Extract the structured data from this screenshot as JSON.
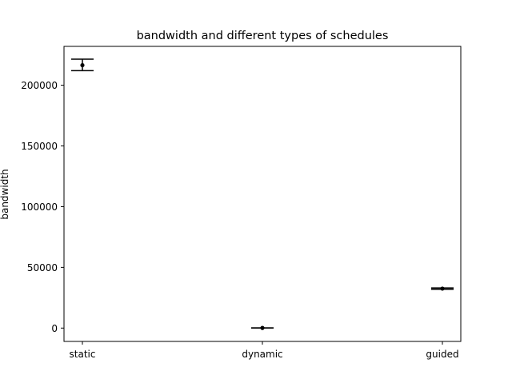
{
  "chart_data": {
    "type": "scatter",
    "title": "bandwidth and different types of schedules",
    "xlabel": "",
    "ylabel": "bandwidth",
    "categories": [
      "static",
      "dynamic",
      "guided"
    ],
    "series": [
      {
        "points": [
          {
            "x": "static",
            "y": 216500,
            "yerr_low": 212000,
            "yerr_high": 221500
          },
          {
            "x": "dynamic",
            "y": 100,
            "yerr_low": 100,
            "yerr_high": 100
          },
          {
            "x": "guided",
            "y": 32500,
            "yerr_low": 32000,
            "yerr_high": 33000
          }
        ]
      }
    ],
    "ylim": [
      -11000,
      232000
    ],
    "yticks": [
      0,
      50000,
      100000,
      150000,
      200000
    ],
    "ytick_labels": [
      "0",
      "50000",
      "100000",
      "150000",
      "200000"
    ],
    "grid": false,
    "marker_color": "#000000"
  }
}
